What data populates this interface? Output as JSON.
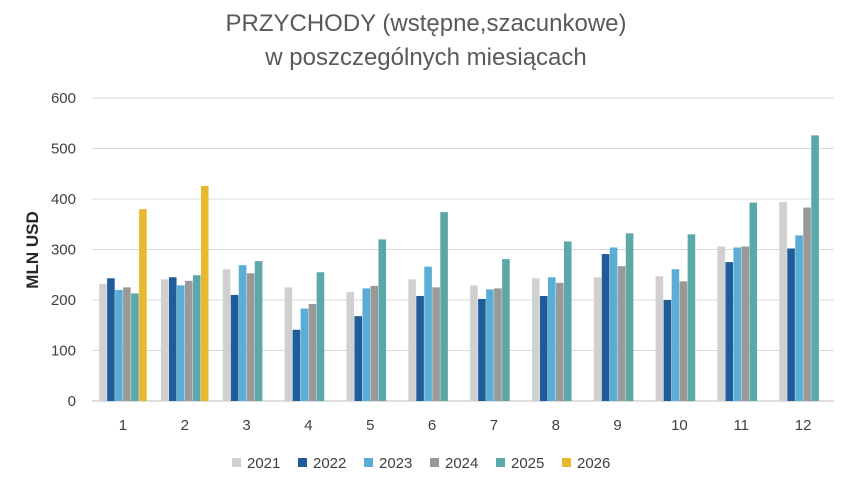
{
  "chart_data": {
    "type": "bar",
    "title": [
      "PRZYCHODY (wstępne,szacunkowe)",
      "w poszczególnych miesiącach"
    ],
    "ylabel": "MLN  USD",
    "xlabel": "",
    "ylim": [
      0,
      600
    ],
    "yticks": [
      "0",
      "100",
      "200",
      "300",
      "400",
      "500",
      "600"
    ],
    "categories": [
      "1",
      "2",
      "3",
      "4",
      "5",
      "6",
      "7",
      "8",
      "9",
      "10",
      "11",
      "12"
    ],
    "grid": true,
    "legend_position": "bottom",
    "series": [
      {
        "name": "2021",
        "color": "#d0d0d0",
        "values": [
          232,
          241,
          261,
          225,
          216,
          241,
          229,
          243,
          245,
          247,
          306,
          394
        ]
      },
      {
        "name": "2022",
        "color": "#1f5c99",
        "values": [
          243,
          245,
          210,
          141,
          168,
          208,
          202,
          208,
          291,
          200,
          275,
          302
        ]
      },
      {
        "name": "2023",
        "color": "#5aaed6",
        "values": [
          220,
          229,
          269,
          183,
          223,
          266,
          221,
          245,
          304,
          261,
          304,
          328
        ]
      },
      {
        "name": "2024",
        "color": "#999999",
        "values": [
          225,
          238,
          253,
          192,
          228,
          225,
          223,
          234,
          267,
          237,
          306,
          383
        ]
      },
      {
        "name": "2025",
        "color": "#5ba8a8",
        "values": [
          213,
          249,
          277,
          255,
          320,
          374,
          281,
          316,
          332,
          330,
          393,
          526
        ]
      },
      {
        "name": "2026",
        "color": "#e8b92f",
        "values": [
          380,
          426,
          null,
          null,
          null,
          null,
          null,
          null,
          null,
          null,
          null,
          null
        ]
      }
    ]
  }
}
